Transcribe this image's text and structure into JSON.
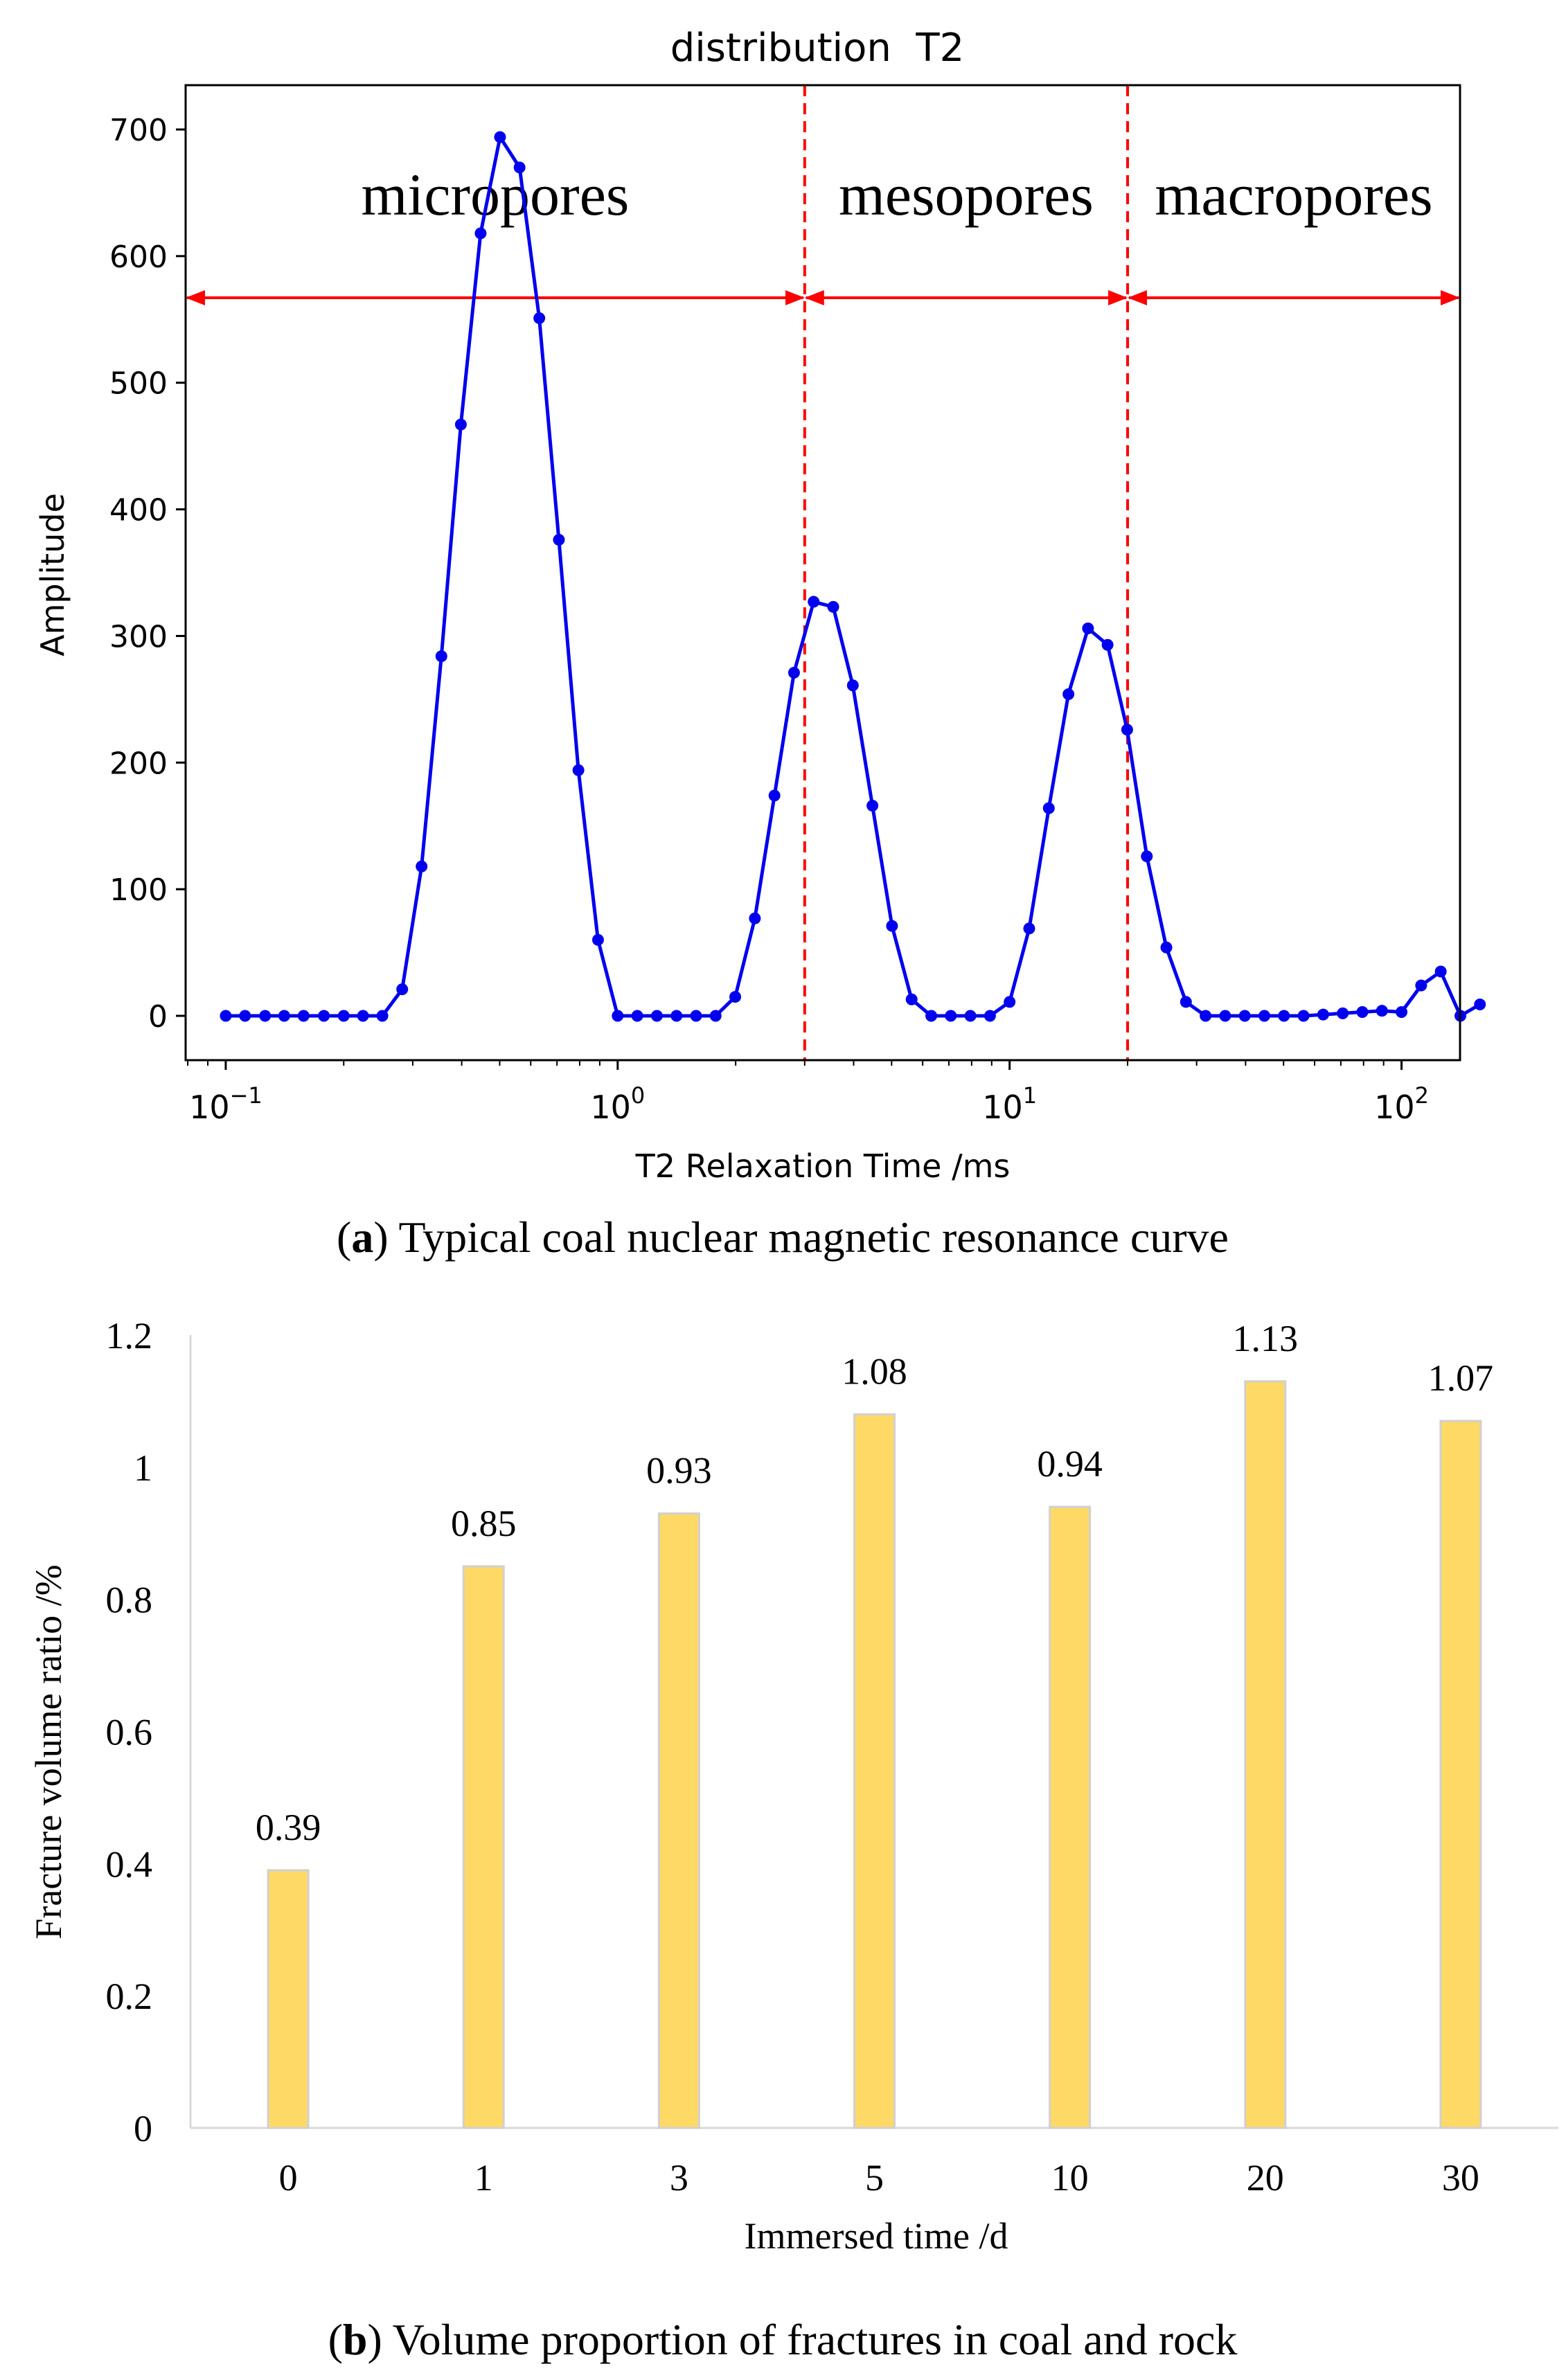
{
  "chart_data": [
    {
      "type": "line",
      "title": "distribution  T2",
      "xlabel": "T2 Relaxation Time /ms",
      "ylabel": "Amplitude",
      "xscale": "log",
      "xlim": [
        0.079,
        141
      ],
      "ylim": [
        -35,
        735
      ],
      "xticks": [
        {
          "value": 0.1,
          "base": "10",
          "exp": "−1"
        },
        {
          "value": 1,
          "base": "10",
          "exp": "0"
        },
        {
          "value": 10,
          "base": "10",
          "exp": "1"
        },
        {
          "value": 100,
          "base": "10",
          "exp": "2"
        }
      ],
      "yticks": [
        0,
        100,
        200,
        300,
        400,
        500,
        600,
        700
      ],
      "series": [
        {
          "name": "T2 distribution",
          "color": "#0000ee",
          "points": [
            [
              0.1,
              0
            ],
            [
              0.112,
              0
            ],
            [
              0.126,
              0
            ],
            [
              0.141,
              0
            ],
            [
              0.158,
              0
            ],
            [
              0.178,
              0
            ],
            [
              0.2,
              0
            ],
            [
              0.224,
              0
            ],
            [
              0.251,
              0
            ],
            [
              0.282,
              21
            ],
            [
              0.316,
              118
            ],
            [
              0.355,
              284
            ],
            [
              0.398,
              467
            ],
            [
              0.447,
              618
            ],
            [
              0.501,
              694
            ],
            [
              0.562,
              670
            ],
            [
              0.631,
              551
            ],
            [
              0.708,
              376
            ],
            [
              0.794,
              194
            ],
            [
              0.891,
              60
            ],
            [
              1.0,
              0
            ],
            [
              1.122,
              0
            ],
            [
              1.259,
              0
            ],
            [
              1.413,
              0
            ],
            [
              1.585,
              0
            ],
            [
              1.778,
              0
            ],
            [
              1.995,
              15
            ],
            [
              2.239,
              77
            ],
            [
              2.512,
              174
            ],
            [
              2.818,
              271
            ],
            [
              3.162,
              327
            ],
            [
              3.548,
              323
            ],
            [
              3.981,
              261
            ],
            [
              4.467,
              166
            ],
            [
              5.012,
              71
            ],
            [
              5.623,
              13
            ],
            [
              6.31,
              0
            ],
            [
              7.079,
              0
            ],
            [
              7.943,
              0
            ],
            [
              8.913,
              0
            ],
            [
              10.0,
              11
            ],
            [
              11.22,
              69
            ],
            [
              12.59,
              164
            ],
            [
              14.13,
              254
            ],
            [
              15.85,
              306
            ],
            [
              17.78,
              293
            ],
            [
              19.95,
              226
            ],
            [
              22.39,
              126
            ],
            [
              25.12,
              54
            ],
            [
              28.18,
              11
            ],
            [
              31.62,
              0
            ],
            [
              35.48,
              0
            ],
            [
              39.81,
              0
            ],
            [
              44.67,
              0
            ],
            [
              50.12,
              0
            ],
            [
              56.23,
              0
            ],
            [
              63.1,
              1
            ],
            [
              70.79,
              2
            ],
            [
              79.43,
              3
            ],
            [
              89.13,
              4
            ],
            [
              100.0,
              3
            ],
            [
              112.2,
              24
            ],
            [
              125.9,
              35
            ],
            [
              141.3,
              0
            ],
            [
              158.5,
              9
            ]
          ]
        }
      ],
      "dividers": [
        {
          "x": 3.0,
          "color": "#ff0000",
          "style": "dashed"
        },
        {
          "x": 20.0,
          "color": "#ff0000",
          "style": "dashed"
        }
      ],
      "regions": [
        {
          "label": "micropores",
          "from": 0.079,
          "to": 3.0
        },
        {
          "label": "mesopores",
          "from": 3.0,
          "to": 20.0
        },
        {
          "label": "macropores",
          "from": 20.0,
          "to": 141
        }
      ],
      "arrow_color": "#ff0000",
      "caption": {
        "letter": "a",
        "text": ") Typical coal nuclear magnetic resonance curve"
      }
    },
    {
      "type": "bar",
      "categories": [
        "0",
        "1",
        "3",
        "5",
        "10",
        "20",
        "30"
      ],
      "values": [
        0.39,
        0.85,
        0.93,
        1.08,
        0.94,
        1.13,
        1.07
      ],
      "value_labels": [
        "0.39",
        "0.85",
        "0.93",
        "1.08",
        "0.94",
        "1.13",
        "1.07"
      ],
      "xlabel": "Immersed time /d",
      "ylabel": "Fracture volume ratio /%",
      "ylim": [
        0,
        1.2
      ],
      "yticks": [
        "0",
        "0.2",
        "0.4",
        "0.6",
        "0.8",
        "1",
        "1.2"
      ],
      "bar_color": "#ffd966",
      "bar_edge_color": "#d0d0d0",
      "caption": {
        "letter": "b",
        "text": ") Volume proportion of fractures in coal and rock"
      }
    }
  ]
}
